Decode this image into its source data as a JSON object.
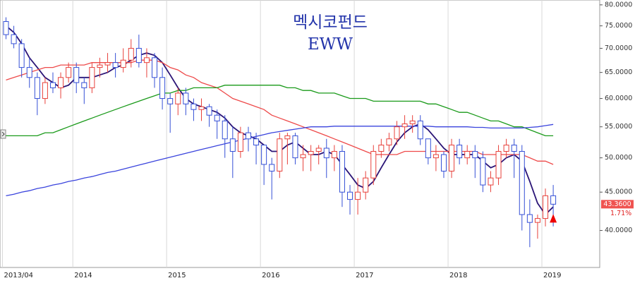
{
  "chart_data": {
    "type": "candlestick",
    "title": "멕시코펀드",
    "subtitle": "EWW",
    "log_scale": true,
    "xgrid": true,
    "up_color": "#e8413b",
    "down_color": "#3550d6",
    "ylim": [
      35.7,
      81.2
    ],
    "yticks": [
      {
        "value": 40,
        "label": "40.0000"
      },
      {
        "value": 45,
        "label": "45.0000"
      },
      {
        "value": 50,
        "label": "50.0000"
      },
      {
        "value": 55,
        "label": "55.0000"
      },
      {
        "value": 60,
        "label": "60.0000"
      },
      {
        "value": 65,
        "label": "65.0000"
      },
      {
        "value": 70,
        "label": "70.0000"
      },
      {
        "value": 75,
        "label": "75.0000"
      },
      {
        "value": 80,
        "label": "80.0000"
      }
    ],
    "categories": [
      "2013/04",
      null,
      null,
      null,
      null,
      null,
      null,
      null,
      null,
      "2014",
      null,
      null,
      null,
      null,
      null,
      null,
      null,
      null,
      null,
      null,
      null,
      "2015",
      null,
      null,
      null,
      null,
      null,
      null,
      null,
      null,
      null,
      null,
      null,
      "2016",
      null,
      null,
      null,
      null,
      null,
      null,
      null,
      null,
      null,
      null,
      null,
      "2017",
      null,
      null,
      null,
      null,
      null,
      null,
      null,
      null,
      null,
      null,
      null,
      "2018",
      null,
      null,
      null,
      null,
      null,
      null,
      null,
      null,
      null,
      null,
      null,
      "2019",
      null
    ],
    "open": [
      76,
      73,
      71,
      66,
      64,
      60,
      63,
      62,
      64,
      66,
      63,
      62,
      66,
      66.5,
      67,
      66,
      67.5,
      70,
      67,
      68,
      64,
      60,
      59,
      61,
      59,
      58,
      58.5,
      57,
      56,
      53,
      51,
      54,
      53,
      52,
      49,
      48,
      53,
      53.5,
      50,
      50.5,
      51,
      51.5,
      50,
      51,
      45,
      44,
      45,
      47,
      51,
      52,
      53,
      55,
      55.5,
      56,
      53,
      50,
      50.5,
      48,
      52,
      50,
      51,
      50,
      46,
      47,
      51,
      52,
      51,
      42,
      41,
      41.5,
      44.5
    ],
    "high": [
      77,
      75,
      72,
      68,
      65,
      64,
      65,
      65,
      67,
      67,
      64,
      67,
      68,
      69,
      69,
      70,
      72,
      73,
      70,
      69,
      66,
      61,
      62,
      62,
      60,
      60,
      59,
      58,
      57,
      55,
      55,
      55,
      54,
      52,
      50,
      54,
      54,
      54,
      52,
      52,
      52,
      53,
      52,
      52,
      46,
      47,
      48,
      52,
      53,
      54,
      56,
      57,
      57,
      57,
      53,
      52,
      51,
      53,
      53,
      52,
      52,
      51,
      48,
      52,
      53,
      53,
      52,
      44,
      42,
      45.5,
      46
    ],
    "low": [
      72,
      70,
      64,
      62,
      57,
      59,
      61,
      60,
      63,
      61,
      59,
      61,
      64,
      65,
      64,
      65,
      66,
      66,
      64,
      62,
      58,
      54,
      57,
      57,
      56,
      56,
      55,
      53,
      50,
      47,
      50,
      51,
      49,
      46,
      44,
      47,
      49,
      49,
      48,
      48,
      49,
      47,
      48,
      43,
      42,
      42,
      44,
      46,
      50,
      51,
      52,
      53,
      54,
      52,
      49,
      48,
      47,
      47,
      49,
      49,
      47,
      45,
      45,
      46,
      50,
      47,
      40,
      38,
      39,
      40.5,
      40.5
    ],
    "close": [
      73,
      71,
      66,
      64,
      60,
      63,
      62,
      64,
      66,
      63,
      62,
      66,
      66.5,
      67,
      66,
      67.5,
      70,
      67,
      68,
      64,
      60,
      59,
      61,
      59,
      58,
      58.5,
      57,
      56,
      53,
      51,
      54,
      53,
      52,
      49,
      48,
      53,
      53.5,
      50,
      50.5,
      51,
      51.5,
      50,
      51,
      45,
      44,
      45,
      47,
      51,
      52,
      53,
      55,
      55.5,
      56,
      53,
      50,
      50.5,
      48,
      52,
      50,
      51,
      50,
      46,
      47,
      51,
      52,
      51,
      42,
      41,
      41.5,
      44.5,
      43.36
    ],
    "lines": [
      {
        "color": "#2b1577",
        "values": [
          75,
          73.5,
          71,
          68,
          66,
          64,
          63,
          62,
          62.5,
          64,
          64,
          64,
          64.5,
          65,
          66,
          66.5,
          67.5,
          68.5,
          69,
          68.5,
          67,
          64.5,
          62,
          60,
          59,
          58.5,
          58,
          57.5,
          56.5,
          55,
          54,
          53.5,
          53,
          52,
          51,
          51,
          52,
          52.5,
          51.5,
          50.5,
          50.5,
          51,
          50.5,
          49,
          47.5,
          46,
          45.5,
          46.5,
          48.5,
          50.5,
          52.5,
          54,
          55,
          55.5,
          54.5,
          53,
          51.5,
          50.5,
          50.5,
          50.5,
          50.5,
          49.5,
          48.5,
          49,
          50,
          50.5,
          49.5,
          46.5,
          43.5,
          42,
          43
        ]
      },
      {
        "color": "#ee4a4a",
        "values": [
          63.5,
          64,
          64.5,
          65,
          65.5,
          66,
          66,
          66.5,
          66.5,
          66.5,
          66.5,
          67,
          67,
          67,
          67,
          67,
          67,
          67.5,
          67.5,
          67.5,
          67,
          66,
          65.5,
          64.5,
          64,
          63,
          62.5,
          62,
          61,
          60,
          59.5,
          59,
          58.5,
          58,
          57,
          56.5,
          56,
          55.5,
          55,
          54.5,
          54,
          53.5,
          53,
          52.5,
          52,
          51.5,
          51,
          50.5,
          50.5,
          50.5,
          50.5,
          51,
          51,
          51,
          51,
          51,
          51,
          51,
          51,
          51,
          51,
          50.5,
          50.5,
          50.5,
          50.5,
          50.5,
          50.5,
          50,
          49.5,
          49.5,
          49
        ]
      },
      {
        "color": "#1a9a1a",
        "values": [
          53.5,
          53.5,
          53.5,
          53.5,
          53.5,
          54,
          54,
          54.5,
          55,
          55.5,
          56,
          56.5,
          57,
          57.5,
          58,
          58.5,
          59,
          59.5,
          60,
          60.5,
          61,
          61,
          61.5,
          61.5,
          62,
          62,
          62,
          62,
          62.5,
          62.5,
          62.5,
          62.5,
          62.5,
          62.5,
          62.5,
          62.5,
          62,
          62,
          61.5,
          61.5,
          61,
          61,
          61,
          60.5,
          60,
          60,
          60,
          59.5,
          59.5,
          59.5,
          59.5,
          59.5,
          59.5,
          59.5,
          59,
          59,
          58.5,
          58,
          57.5,
          57.5,
          57,
          56.5,
          56,
          56,
          55.5,
          55,
          55,
          54.5,
          54,
          53.5,
          53.5
        ]
      },
      {
        "color": "#3a44dd",
        "values": [
          44.5,
          44.7,
          45,
          45.2,
          45.5,
          45.7,
          46,
          46.2,
          46.5,
          46.7,
          47,
          47.2,
          47.5,
          47.8,
          48,
          48.3,
          48.6,
          48.9,
          49.2,
          49.5,
          49.8,
          50.1,
          50.4,
          50.7,
          51,
          51.3,
          51.6,
          51.9,
          52.2,
          52.5,
          52.8,
          53.1,
          53.4,
          53.7,
          54,
          54.2,
          54.4,
          54.6,
          54.8,
          55,
          55,
          55,
          55.1,
          55.1,
          55.1,
          55.1,
          55.1,
          55.1,
          55.1,
          55.1,
          55.1,
          55.1,
          55.1,
          55.1,
          55.1,
          55,
          55,
          55,
          55,
          55,
          54.9,
          54.9,
          54.8,
          54.8,
          54.8,
          54.8,
          54.8,
          54.9,
          55,
          55.2,
          55.4
        ]
      }
    ],
    "last_label": "43.3600",
    "change_label": "1.71%"
  }
}
